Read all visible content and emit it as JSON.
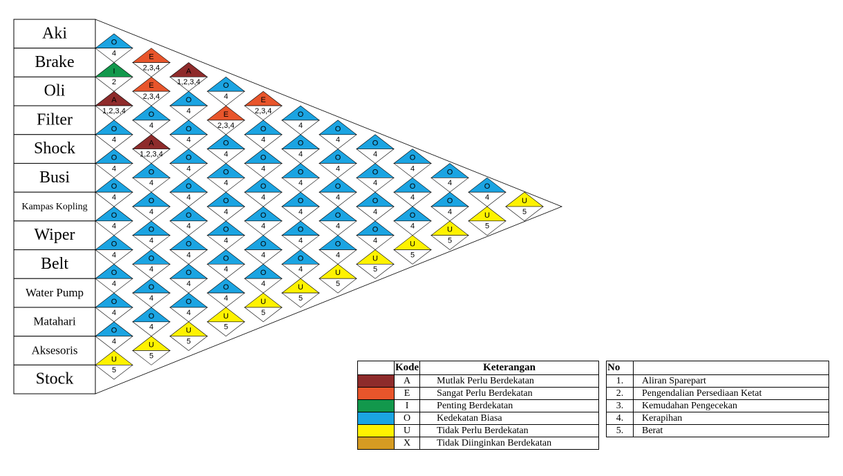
{
  "departments": [
    "Aki",
    "Brake",
    "Oli",
    "Filter",
    "Shock",
    "Busi",
    "Kampas Kopling",
    "Wiper",
    "Belt",
    "Water Pump",
    "Matahari",
    "Aksesoris",
    "Stock"
  ],
  "relations": [
    [
      {
        "code": "O",
        "reason": "4"
      },
      {
        "code": "E",
        "reason": "2,3,4"
      },
      {
        "code": "A",
        "reason": "1,2,3,4"
      },
      {
        "code": "O",
        "reason": "4"
      },
      {
        "code": "E",
        "reason": "2,3,4"
      },
      {
        "code": "O",
        "reason": "4"
      },
      {
        "code": "O",
        "reason": "4"
      },
      {
        "code": "O",
        "reason": "4"
      },
      {
        "code": "O",
        "reason": "4"
      },
      {
        "code": "O",
        "reason": "4"
      },
      {
        "code": "O",
        "reason": "4"
      },
      {
        "code": "U",
        "reason": "5"
      }
    ],
    [
      {
        "code": "I",
        "reason": "2"
      },
      {
        "code": "E",
        "reason": "2,3,4"
      },
      {
        "code": "O",
        "reason": "4"
      },
      {
        "code": "E",
        "reason": "2,3,4"
      },
      {
        "code": "O",
        "reason": "4"
      },
      {
        "code": "O",
        "reason": "4"
      },
      {
        "code": "O",
        "reason": "4"
      },
      {
        "code": "O",
        "reason": "4"
      },
      {
        "code": "O",
        "reason": "4"
      },
      {
        "code": "O",
        "reason": "4"
      },
      {
        "code": "U",
        "reason": "5"
      }
    ],
    [
      {
        "code": "A",
        "reason": "1,2,3,4"
      },
      {
        "code": "O",
        "reason": "4"
      },
      {
        "code": "O",
        "reason": "4"
      },
      {
        "code": "O",
        "reason": "4"
      },
      {
        "code": "O",
        "reason": "4"
      },
      {
        "code": "O",
        "reason": "4"
      },
      {
        "code": "O",
        "reason": "4"
      },
      {
        "code": "O",
        "reason": "4"
      },
      {
        "code": "O",
        "reason": "4"
      },
      {
        "code": "U",
        "reason": "5"
      }
    ],
    [
      {
        "code": "O",
        "reason": "4"
      },
      {
        "code": "A",
        "reason": "1,2,3,4"
      },
      {
        "code": "O",
        "reason": "4"
      },
      {
        "code": "O",
        "reason": "4"
      },
      {
        "code": "O",
        "reason": "4"
      },
      {
        "code": "O",
        "reason": "4"
      },
      {
        "code": "O",
        "reason": "4"
      },
      {
        "code": "O",
        "reason": "4"
      },
      {
        "code": "U",
        "reason": "5"
      }
    ],
    [
      {
        "code": "O",
        "reason": "4"
      },
      {
        "code": "O",
        "reason": "4"
      },
      {
        "code": "O",
        "reason": "4"
      },
      {
        "code": "O",
        "reason": "4"
      },
      {
        "code": "O",
        "reason": "4"
      },
      {
        "code": "O",
        "reason": "4"
      },
      {
        "code": "O",
        "reason": "4"
      },
      {
        "code": "U",
        "reason": "5"
      }
    ],
    [
      {
        "code": "O",
        "reason": "4"
      },
      {
        "code": "O",
        "reason": "4"
      },
      {
        "code": "O",
        "reason": "4"
      },
      {
        "code": "O",
        "reason": "4"
      },
      {
        "code": "O",
        "reason": "4"
      },
      {
        "code": "O",
        "reason": "4"
      },
      {
        "code": "U",
        "reason": "5"
      }
    ],
    [
      {
        "code": "O",
        "reason": "4"
      },
      {
        "code": "O",
        "reason": "4"
      },
      {
        "code": "O",
        "reason": "4"
      },
      {
        "code": "O",
        "reason": "4"
      },
      {
        "code": "O",
        "reason": "4"
      },
      {
        "code": "U",
        "reason": "5"
      }
    ],
    [
      {
        "code": "O",
        "reason": "4"
      },
      {
        "code": "O",
        "reason": "4"
      },
      {
        "code": "O",
        "reason": "4"
      },
      {
        "code": "O",
        "reason": "4"
      },
      {
        "code": "U",
        "reason": "5"
      }
    ],
    [
      {
        "code": "O",
        "reason": "4"
      },
      {
        "code": "O",
        "reason": "4"
      },
      {
        "code": "O",
        "reason": "4"
      },
      {
        "code": "U",
        "reason": "5"
      }
    ],
    [
      {
        "code": "O",
        "reason": "4"
      },
      {
        "code": "O",
        "reason": "4"
      },
      {
        "code": "U",
        "reason": "5"
      }
    ],
    [
      {
        "code": "O",
        "reason": "4"
      },
      {
        "code": "U",
        "reason": "5"
      }
    ],
    [
      {
        "code": "U",
        "reason": "5"
      }
    ]
  ],
  "code_legend": {
    "headers": [
      "Kode",
      "Keterangan"
    ],
    "rows": [
      {
        "code": "A",
        "text": "Mutlak Perlu Berdekatan",
        "color": "#8e2b2b"
      },
      {
        "code": "E",
        "text": "Sangat Perlu Berdekatan",
        "color": "#e8552b"
      },
      {
        "code": "I",
        "text": "Penting Berdekatan",
        "color": "#12984c"
      },
      {
        "code": "O",
        "text": "Kedekatan Biasa",
        "color": "#1ba4e2"
      },
      {
        "code": "U",
        "text": "Tidak Perlu Berdekatan",
        "color": "#fff200"
      },
      {
        "code": "X",
        "text": "Tidak Diinginkan Berdekatan",
        "color": "#d59b22"
      }
    ]
  },
  "reason_legend": {
    "header": "No",
    "rows": [
      {
        "no": "1.",
        "text": "Aliran Sparepart"
      },
      {
        "no": "2.",
        "text": "Pengendalian Persediaan Ketat"
      },
      {
        "no": "3.",
        "text": "Kemudahan Pengecekan"
      },
      {
        "no": "4.",
        "text": "Kerapihan"
      },
      {
        "no": "5.",
        "text": "Berat"
      }
    ]
  }
}
